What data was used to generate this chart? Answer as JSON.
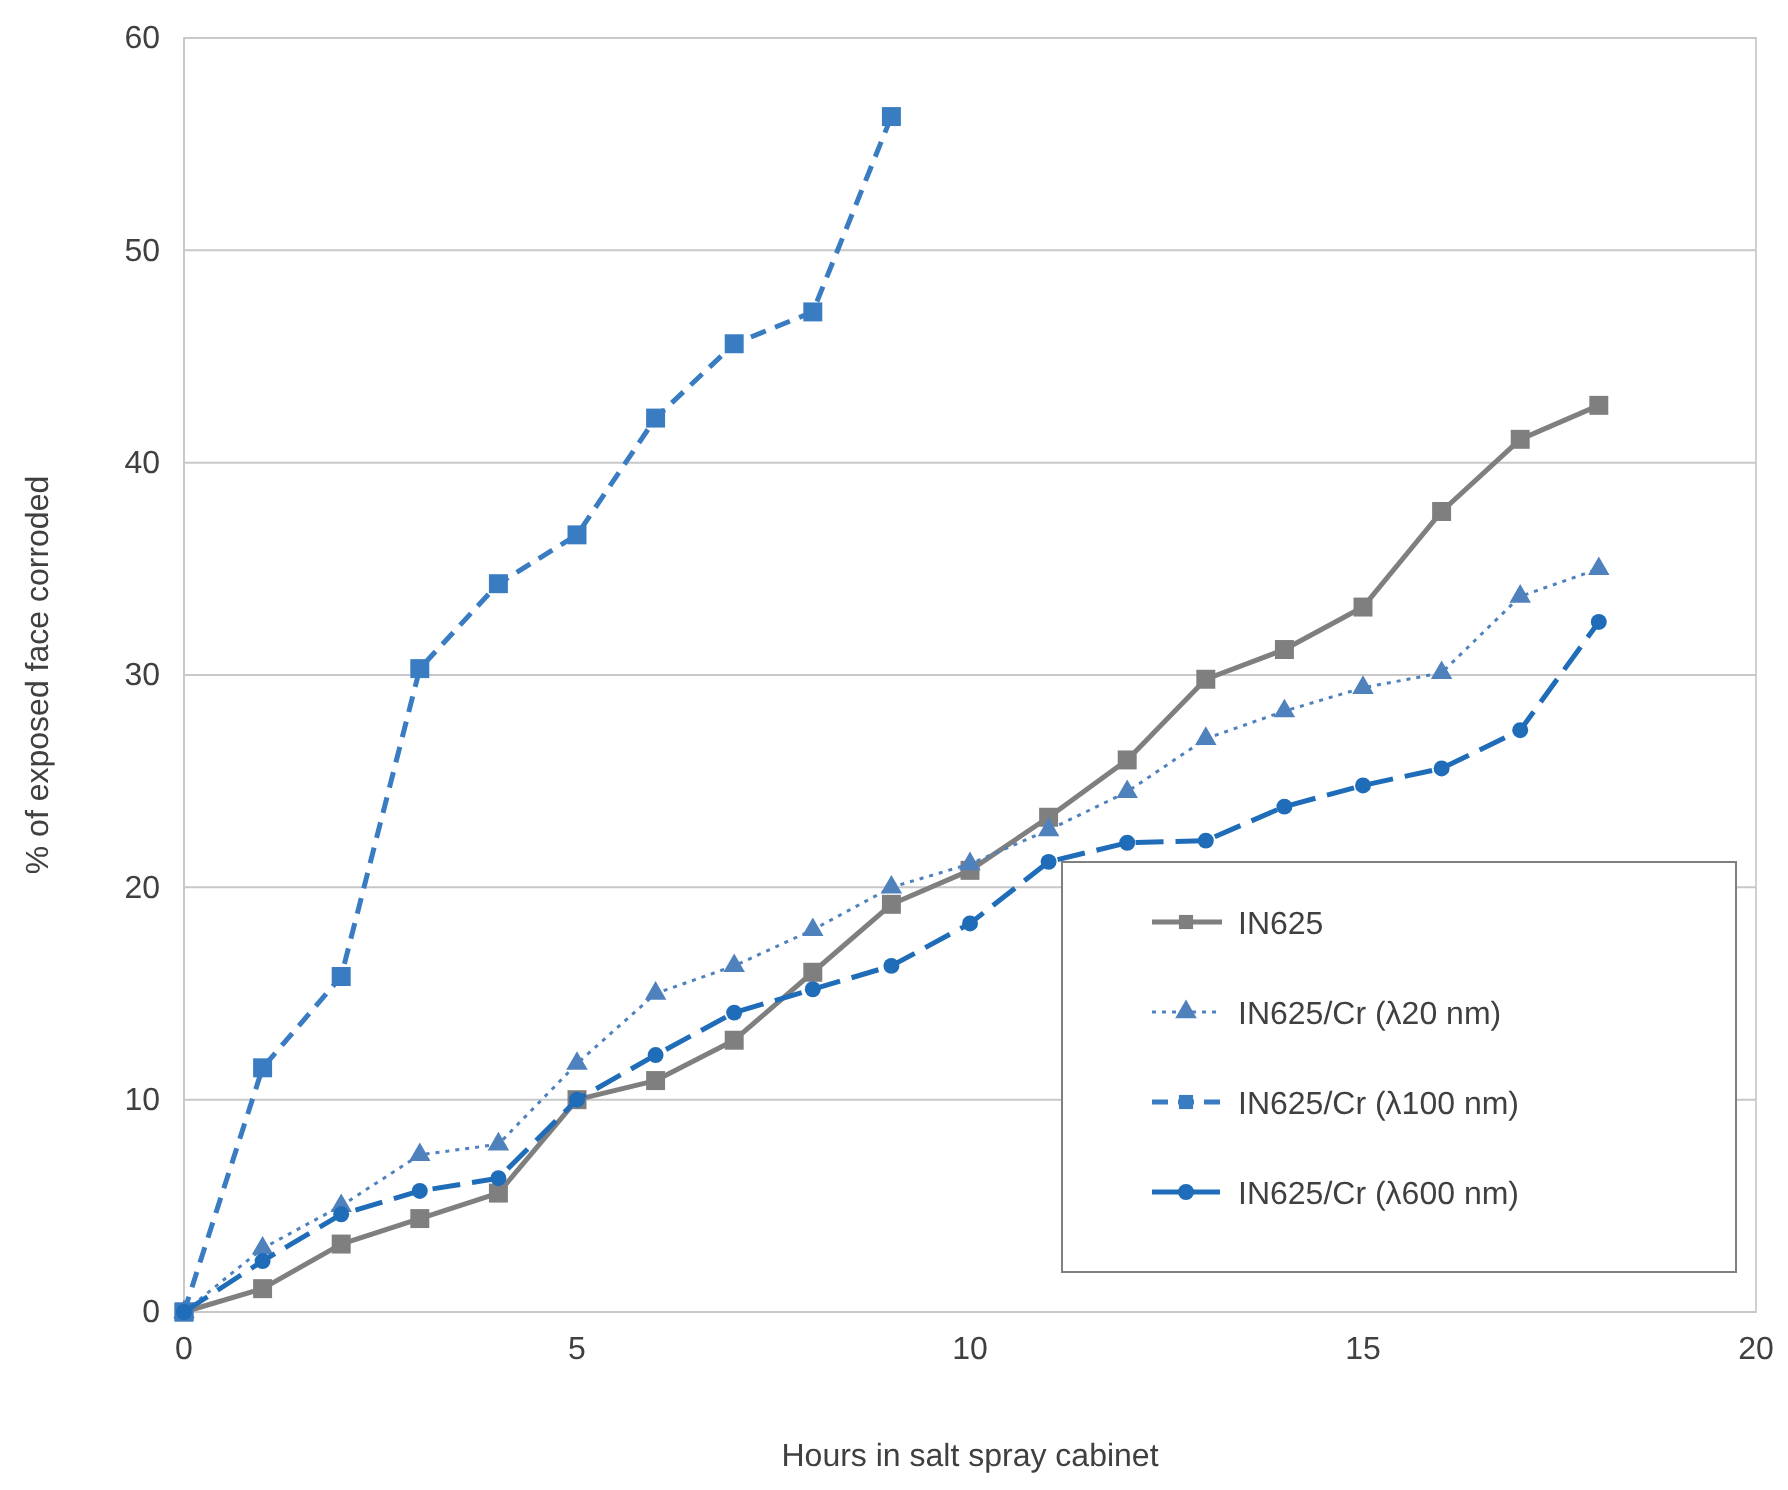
{
  "chart_data": {
    "type": "line",
    "xlabel": "Hours in salt spray cabinet",
    "ylabel": "% of exposed face corroded",
    "x": [
      0,
      1,
      2,
      3,
      4,
      5,
      6,
      7,
      8,
      9,
      10,
      11,
      12,
      13,
      14,
      15,
      16,
      17,
      18
    ],
    "xlim": [
      0,
      20
    ],
    "xticks": [
      0,
      5,
      10,
      15,
      20
    ],
    "ylim": [
      0,
      60
    ],
    "yticks": [
      0,
      10,
      20,
      30,
      40,
      50,
      60
    ],
    "grid": "y",
    "legend": "bottom right",
    "series": [
      {
        "name": "IN625",
        "color": "#7f7f7f",
        "marker": "square",
        "line_style": "solid",
        "values": [
          0,
          1.1,
          3.2,
          4.4,
          5.6,
          10,
          10.9,
          12.8,
          16,
          19.2,
          20.8,
          23.3,
          26,
          29.8,
          31.2,
          33.2,
          37.7,
          41.1,
          42.7
        ]
      },
      {
        "name": "IN625/Cr (λ20 nm)",
        "color": "#4f81bd",
        "marker": "triangle",
        "line_style": "dotted",
        "values": [
          0,
          3,
          5,
          7.4,
          7.9,
          11.7,
          15,
          16.3,
          18,
          20,
          21.1,
          22.7,
          24.5,
          27,
          28.3,
          29.4,
          30.1,
          33.7,
          35
        ]
      },
      {
        "name": "IN625/Cr (λ100 nm)",
        "color": "#3a7cc2",
        "marker": "square",
        "line_style": "dashed",
        "x": [
          0,
          1,
          2,
          3,
          4,
          5,
          6,
          7,
          8,
          9
        ],
        "values": [
          0,
          11.5,
          15.8,
          30.3,
          34.3,
          36.6,
          42.1,
          45.6,
          47.1,
          56.3
        ]
      },
      {
        "name": "IN625/Cr (λ600 nm)",
        "color": "#1f6cb8",
        "marker": "circle",
        "line_style": "longdash",
        "values": [
          0,
          2.4,
          4.6,
          5.7,
          6.3,
          10,
          12.1,
          14.1,
          15.2,
          16.3,
          18.3,
          21.2,
          22.1,
          22.2,
          23.8,
          24.8,
          25.6,
          27.4,
          32.5
        ]
      }
    ]
  }
}
